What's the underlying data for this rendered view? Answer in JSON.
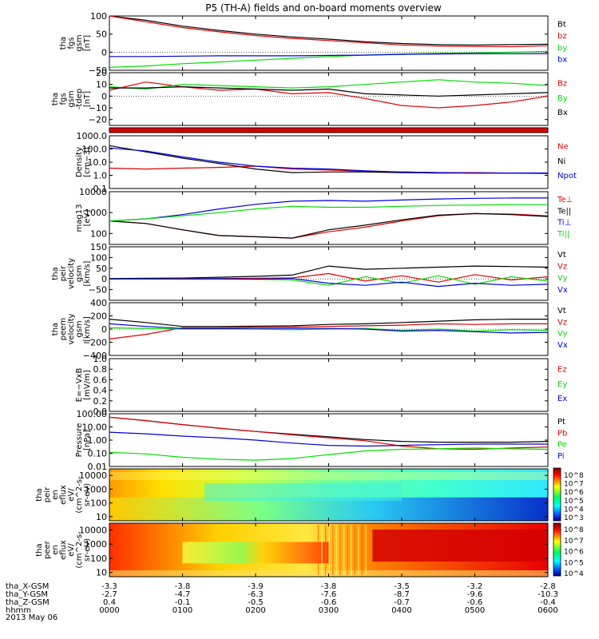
{
  "title": "P5 (TH-A) fields and on-board moments overview",
  "date": "2013 May 06",
  "colors": {
    "black": "#000000",
    "red": "#e00000",
    "green": "#00dd00",
    "blue": "#0000dd"
  },
  "chart_data": [
    {
      "type": "line",
      "name": "fgs_gsm_total",
      "ylabel": [
        "tha",
        "fgs",
        "gsm",
        "[nT]"
      ],
      "ylim": [
        -50,
        100
      ],
      "yticks": [
        "100",
        "50",
        "0",
        "−50"
      ],
      "ytick_values": [
        100,
        50,
        0,
        -50
      ],
      "x": [
        0,
        0.5,
        1,
        1.5,
        2,
        2.5,
        3,
        3.5,
        4,
        4.5,
        5,
        5.5,
        6
      ],
      "series": [
        {
          "name": "Bt",
          "color": "black",
          "values": [
            105,
            88,
            72,
            60,
            50,
            42,
            36,
            29,
            24,
            21,
            20,
            21,
            22
          ]
        },
        {
          "name": "bz",
          "color": "red",
          "values": [
            100,
            84,
            68,
            56,
            46,
            38,
            32,
            26,
            20,
            17,
            16,
            15,
            18
          ]
        },
        {
          "name": "by",
          "color": "green",
          "values": [
            -42,
            -38,
            -32,
            -27,
            -22,
            -17,
            -12,
            -8,
            -5,
            -3,
            -2,
            0,
            2
          ]
        },
        {
          "name": "bx",
          "color": "blue",
          "values": [
            -12,
            -12,
            -11,
            -10,
            -10,
            -10,
            -9,
            -8,
            -6,
            -5,
            -4,
            -4,
            -4
          ]
        }
      ]
    },
    {
      "type": "line",
      "name": "fgs_gsm_detrended",
      "ylabel": [
        "tha",
        "fgs",
        "gsm",
        "-tdep",
        "[nT]"
      ],
      "ylim": [
        -25,
        20
      ],
      "yticks": [
        "20",
        "10",
        "0",
        "−10",
        "−20"
      ],
      "ytick_values": [
        20,
        10,
        0,
        -10,
        -20
      ],
      "x": [
        0,
        0.5,
        1,
        1.5,
        2,
        2.5,
        3,
        3.5,
        4,
        4.5,
        5,
        5.5,
        6
      ],
      "series": [
        {
          "name": "Bz",
          "color": "red",
          "values": [
            5,
            12,
            8,
            5,
            6,
            2,
            3,
            -2,
            -8,
            -10,
            -8,
            -5,
            0
          ]
        },
        {
          "name": "By",
          "color": "green",
          "values": [
            8,
            6,
            10,
            9,
            8,
            7,
            8,
            10,
            12,
            14,
            12,
            11,
            9
          ]
        },
        {
          "name": "Bx",
          "color": "black",
          "values": [
            7,
            7,
            8,
            7,
            6,
            5,
            6,
            2,
            1,
            0,
            1,
            2,
            3
          ]
        }
      ]
    },
    {
      "type": "bar",
      "name": "mode_bar",
      "ylabel": [],
      "ylim": [
        0,
        1
      ],
      "yticks": [],
      "ytick_values": [],
      "x": [
        0,
        6
      ],
      "series": [
        {
          "name": "",
          "color": "red",
          "values": [
            1,
            1
          ]
        }
      ]
    },
    {
      "type": "line",
      "name": "density",
      "log": true,
      "ylabel": [
        "Density",
        "[cm−3]"
      ],
      "ylim": [
        0.1,
        1000
      ],
      "yticks": [
        "1000.0",
        "100.0",
        "10.0",
        "1.0",
        "0.1"
      ],
      "ytick_values": [
        1000,
        100,
        10,
        1,
        0.1
      ],
      "x": [
        0,
        0.5,
        1,
        1.5,
        2,
        2.5,
        3,
        3.5,
        4,
        4.5,
        5,
        5.5,
        6
      ],
      "series": [
        {
          "name": "Ne",
          "color": "red",
          "values": [
            3.5,
            3,
            3.5,
            4,
            5,
            3,
            2.5,
            2,
            1.8,
            1.6,
            1.6,
            1.5,
            1.5
          ]
        },
        {
          "name": "Ni",
          "color": "black",
          "values": [
            180,
            60,
            20,
            8,
            3,
            1.6,
            1.8,
            1.8,
            1.6,
            1.5,
            1.5,
            1.5,
            1.4
          ]
        },
        {
          "name": "Npot",
          "color": "blue",
          "values": [
            120,
            70,
            25,
            10,
            5,
            3.5,
            3,
            2.2,
            1.8,
            1.6,
            1.5,
            1.5,
            1.5
          ]
        }
      ]
    },
    {
      "type": "line",
      "name": "temperature",
      "log": true,
      "ylabel": [
        "mag13",
        "[eV]"
      ],
      "ylim": [
        30,
        10000
      ],
      "yticks": [
        "10000",
        "1000",
        "100"
      ],
      "ytick_values": [
        10000,
        1000,
        100
      ],
      "x": [
        0,
        0.5,
        1,
        1.5,
        2,
        2.5,
        3,
        3.5,
        4,
        4.5,
        5,
        5.5,
        6
      ],
      "series": [
        {
          "name": "Te⊥",
          "color": "red",
          "values": [
            400,
            300,
            150,
            80,
            70,
            60,
            120,
            200,
            400,
            700,
            900,
            850,
            700
          ]
        },
        {
          "name": "Te||",
          "color": "black",
          "values": [
            400,
            300,
            150,
            80,
            70,
            60,
            150,
            250,
            450,
            750,
            900,
            800,
            650
          ]
        },
        {
          "name": "Ti⊥",
          "color": "blue",
          "values": [
            400,
            500,
            800,
            1500,
            2500,
            3500,
            3800,
            3500,
            4000,
            4500,
            4800,
            5000,
            5000
          ]
        },
        {
          "name": "Ti||",
          "color": "green",
          "values": [
            400,
            500,
            700,
            1000,
            1500,
            2000,
            1800,
            1800,
            2000,
            2200,
            2300,
            2400,
            2400
          ]
        }
      ]
    },
    {
      "type": "line",
      "name": "peir_velocity",
      "ylabel": [
        "tha",
        "peir",
        "velocity",
        "gsm",
        "[km/s]"
      ],
      "ylim": [
        -100,
        150
      ],
      "yticks": [
        "150",
        "100",
        "50",
        "0",
        "−50"
      ],
      "ytick_values": [
        150,
        100,
        50,
        0,
        -50
      ],
      "x": [
        0,
        0.5,
        1,
        1.5,
        2,
        2.5,
        3,
        3.5,
        4,
        4.5,
        5,
        5.5,
        6
      ],
      "series": [
        {
          "name": "Vt",
          "color": "black",
          "values": [
            2,
            3,
            4,
            8,
            12,
            18,
            60,
            45,
            50,
            55,
            60,
            58,
            55
          ]
        },
        {
          "name": "Vz",
          "color": "red",
          "values": [
            0,
            0,
            1,
            2,
            3,
            5,
            25,
            -10,
            15,
            -15,
            20,
            -5,
            10
          ]
        },
        {
          "name": "Vy",
          "color": "green",
          "values": [
            0,
            0,
            -1,
            -2,
            -2,
            -5,
            -30,
            10,
            -20,
            15,
            -25,
            10,
            -10
          ]
        },
        {
          "name": "Vx",
          "color": "blue",
          "values": [
            0,
            0,
            0,
            1,
            -1,
            2,
            -20,
            -30,
            -15,
            -35,
            -20,
            -30,
            -25
          ]
        }
      ]
    },
    {
      "type": "line",
      "name": "peem_velocity",
      "ylabel": [
        "tha",
        "peem",
        "velocity",
        "gsm",
        "[km/s]"
      ],
      "ylim": [
        -400,
        400
      ],
      "yticks": [
        "400",
        "200",
        "0",
        "−200",
        "−400"
      ],
      "ytick_values": [
        400,
        200,
        0,
        -200,
        -400
      ],
      "x": [
        0,
        0.5,
        1,
        1.5,
        2,
        2.5,
        3,
        3.5,
        4,
        4.5,
        5,
        5.5,
        6
      ],
      "series": [
        {
          "name": "Vt",
          "color": "black",
          "values": [
            150,
            100,
            40,
            40,
            45,
            50,
            70,
            80,
            100,
            120,
            140,
            150,
            150
          ]
        },
        {
          "name": "Vz",
          "color": "red",
          "values": [
            -150,
            -80,
            20,
            20,
            30,
            30,
            40,
            50,
            60,
            80,
            70,
            80,
            80
          ]
        },
        {
          "name": "Vy",
          "color": "green",
          "values": [
            20,
            10,
            0,
            0,
            0,
            -10,
            0,
            10,
            -20,
            0,
            -30,
            -10,
            -20
          ]
        },
        {
          "name": "Vx",
          "color": "blue",
          "values": [
            80,
            40,
            10,
            10,
            10,
            10,
            10,
            0,
            -30,
            -20,
            -40,
            -60,
            -50
          ]
        }
      ]
    },
    {
      "type": "line",
      "name": "efield",
      "ylabel": [
        "E=−VxB",
        "[mV/m]"
      ],
      "ylim": [
        0,
        1
      ],
      "yticks": [
        "1.0",
        "0.8",
        "0.6",
        "0.4",
        "0.2",
        "0.0"
      ],
      "ytick_values": [
        1,
        0.8,
        0.6,
        0.4,
        0.2,
        0
      ],
      "x": [],
      "series": [
        {
          "name": "Ez",
          "color": "red",
          "values": []
        },
        {
          "name": "Ey",
          "color": "green",
          "values": []
        },
        {
          "name": "Ex",
          "color": "blue",
          "values": []
        }
      ]
    },
    {
      "type": "line",
      "name": "pressure",
      "log": true,
      "ylabel": [
        "Pressure",
        "[nPa]"
      ],
      "ylim": [
        0.01,
        100
      ],
      "yticks": [
        "100.00",
        "10.00",
        "1.00",
        "0.10",
        "0.01"
      ],
      "ytick_values": [
        100,
        10,
        1,
        0.1,
        0.01
      ],
      "x": [
        0,
        0.5,
        1,
        1.5,
        2,
        2.5,
        3,
        3.5,
        4,
        4.5,
        5,
        5.5,
        6
      ],
      "series": [
        {
          "name": "Pt",
          "color": "black",
          "values": [
            55,
            30,
            15,
            8,
            4.5,
            2.8,
            1.8,
            1.1,
            0.8,
            0.7,
            0.7,
            0.7,
            0.8
          ]
        },
        {
          "name": "Pb",
          "color": "red",
          "values": [
            55,
            30,
            15,
            8,
            4.5,
            2.5,
            1.5,
            0.9,
            0.35,
            0.22,
            0.2,
            0.25,
            0.3
          ]
        },
        {
          "name": "Pe",
          "color": "green",
          "values": [
            0.12,
            0.09,
            0.05,
            0.035,
            0.03,
            0.04,
            0.08,
            0.15,
            0.2,
            0.22,
            0.25,
            0.22,
            0.2
          ]
        },
        {
          "name": "Pi",
          "color": "blue",
          "values": [
            4,
            3,
            2,
            1.5,
            1,
            0.6,
            0.4,
            0.35,
            0.4,
            0.45,
            0.5,
            0.5,
            0.5
          ]
        }
      ]
    },
    {
      "type": "heatmap",
      "name": "peir_spectrogram",
      "log": true,
      "ylabel": [
        "tha",
        "peir",
        "en",
        "eflux",
        "eV/",
        "(cm^2-s-",
        "sr-eV)"
      ],
      "ylim": [
        5,
        30000
      ],
      "yticks": [
        "10000",
        "1000",
        "100",
        "10"
      ],
      "ytick_values": [
        10000,
        1000,
        100,
        10
      ],
      "colorbar_ticks": [
        "10^8",
        "10^7",
        "10^6",
        "10^5",
        "10^4",
        "10^3"
      ]
    },
    {
      "type": "heatmap",
      "name": "peer_spectrogram",
      "log": true,
      "ylabel": [
        "tha",
        "peer",
        "en",
        "eflux",
        "eV/",
        "(cm^2-s-",
        "sr-eV)"
      ],
      "ylim": [
        5,
        30000
      ],
      "yticks": [
        "10000",
        "1000",
        "100",
        "10"
      ],
      "ytick_values": [
        10000,
        1000,
        100,
        10
      ],
      "colorbar_ticks": [
        "10^8",
        "10^7",
        "10^6",
        "10^5",
        "10^4"
      ]
    }
  ],
  "xaxis": {
    "row_labels": [
      "tha_X-GSM",
      "tha_Y-GSM",
      "tha_Z-GSM",
      "hhmm"
    ],
    "columns": [
      [
        "-3.3",
        "-2.7",
        "0.4",
        "0000"
      ],
      [
        "-3.8",
        "-4.7",
        "-0.1",
        "0100"
      ],
      [
        "-3.9",
        "-6.3",
        "-0.5",
        "0200"
      ],
      [
        "-3.8",
        "-7.6",
        "-0.6",
        "0300"
      ],
      [
        "-3.5",
        "-8.7",
        "-0.7",
        "0400"
      ],
      [
        "-3.2",
        "-9.6",
        "-0.6",
        "0500"
      ],
      [
        "-2.8",
        "-10.3",
        "-0.4",
        "0600"
      ]
    ]
  }
}
